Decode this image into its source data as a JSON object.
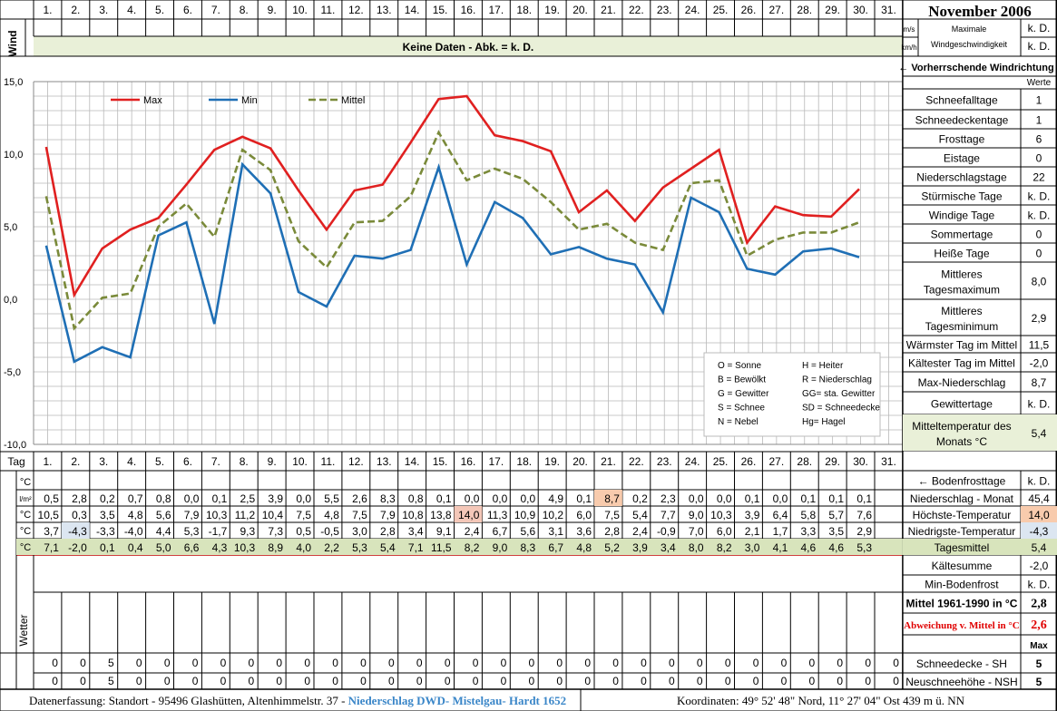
{
  "month_title": "November 2006",
  "days": [
    "1.",
    "2.",
    "3.",
    "4.",
    "5.",
    "6.",
    "7.",
    "8.",
    "9.",
    "10.",
    "11.",
    "12.",
    "13.",
    "14.",
    "15.",
    "16.",
    "17.",
    "18.",
    "19.",
    "20.",
    "21.",
    "22.",
    "23.",
    "24.",
    "25.",
    "26.",
    "27.",
    "28.",
    "29.",
    "30.",
    "31."
  ],
  "wind": {
    "label": "Wind",
    "no_data_banner": "Keine Daten - Abk. = k. D.",
    "unit_ms": "m/s",
    "unit_kmh": "km/h",
    "max_label_1": "Maximale",
    "max_label_2": "Windgeschwindigkeit",
    "value_ms": "k. D.",
    "value_kmh": "k. D.",
    "direction_label": "← Vorherrschende Windrichtung"
  },
  "chart_data": {
    "type": "line",
    "x": [
      1,
      2,
      3,
      4,
      5,
      6,
      7,
      8,
      9,
      10,
      11,
      12,
      13,
      14,
      15,
      16,
      17,
      18,
      19,
      20,
      21,
      22,
      23,
      24,
      25,
      26,
      27,
      28,
      29,
      30
    ],
    "ylim": [
      -10,
      15
    ],
    "y_ticks": [
      "15,0",
      "10,0",
      "5,0",
      "0,0",
      "-5,0",
      "-10,0"
    ],
    "grid": true,
    "legend_position": "top-left",
    "series": [
      {
        "name": "Max",
        "color": "#e02020",
        "dash": false,
        "values": [
          10.5,
          0.3,
          3.5,
          4.8,
          5.6,
          7.9,
          10.3,
          11.2,
          10.4,
          7.5,
          4.8,
          7.5,
          7.9,
          10.8,
          13.8,
          14.0,
          11.3,
          10.9,
          10.2,
          6.0,
          7.5,
          5.4,
          7.7,
          9.0,
          10.3,
          3.9,
          6.4,
          5.8,
          5.7,
          7.6
        ]
      },
      {
        "name": "Min",
        "color": "#1f6fb5",
        "dash": false,
        "values": [
          3.7,
          -4.3,
          -3.3,
          -4.0,
          4.4,
          5.3,
          -1.7,
          9.3,
          7.3,
          0.5,
          -0.5,
          3.0,
          2.8,
          3.4,
          9.1,
          2.4,
          6.7,
          5.6,
          3.1,
          3.6,
          2.8,
          2.4,
          -0.9,
          7.0,
          6.0,
          2.1,
          1.7,
          3.3,
          3.5,
          2.9
        ]
      },
      {
        "name": "Mittel",
        "color": "#7a8a3a",
        "dash": true,
        "values": [
          7.1,
          -2.0,
          0.1,
          0.4,
          5.0,
          6.6,
          4.3,
          10.3,
          8.9,
          4.0,
          2.2,
          5.3,
          5.4,
          7.1,
          11.5,
          8.2,
          9.0,
          8.3,
          6.7,
          4.8,
          5.2,
          3.9,
          3.4,
          8.0,
          8.2,
          3.0,
          4.1,
          4.6,
          4.6,
          5.3
        ]
      }
    ]
  },
  "weather_legend": [
    [
      "O = Sonne",
      "H = Heiter"
    ],
    [
      "B = Bewölkt",
      "R = Niederschlag"
    ],
    [
      "G = Gewitter",
      "GG= sta. Gewitter"
    ],
    [
      "S = Schnee",
      "SD = Schneedecke"
    ],
    [
      "N = Nebel",
      "Hg= Hagel"
    ]
  ],
  "table": {
    "tag_label": "Tag",
    "rows": [
      {
        "unit": "°C",
        "values": [
          "",
          "",
          "",
          "",
          "",
          "",
          "",
          "",
          "",
          "",
          "",
          "",
          "",
          "",
          "",
          "",
          "",
          "",
          "",
          "",
          "",
          "",
          "",
          "",
          "",
          "",
          "",
          "",
          "",
          "",
          ""
        ]
      },
      {
        "unit": "l/m²",
        "values": [
          "0,5",
          "2,8",
          "0,2",
          "0,7",
          "0,8",
          "0,0",
          "0,1",
          "2,5",
          "3,9",
          "0,0",
          "5,5",
          "2,6",
          "8,3",
          "0,8",
          "0,1",
          "0,0",
          "0,0",
          "0,0",
          "4,9",
          "0,1",
          "8,7",
          "0,2",
          "2,3",
          "0,0",
          "0,0",
          "0,1",
          "0,0",
          "0,1",
          "0,1",
          "0,1",
          ""
        ]
      },
      {
        "unit": "°C",
        "values": [
          "10,5",
          "0,3",
          "3,5",
          "4,8",
          "5,6",
          "7,9",
          "10,3",
          "11,2",
          "10,4",
          "7,5",
          "4,8",
          "7,5",
          "7,9",
          "10,8",
          "13,8",
          "14,0",
          "11,3",
          "10,9",
          "10,2",
          "6,0",
          "7,5",
          "5,4",
          "7,7",
          "9,0",
          "10,3",
          "3,9",
          "6,4",
          "5,8",
          "5,7",
          "7,6",
          ""
        ]
      },
      {
        "unit": "°C",
        "values": [
          "3,7",
          "-4,3",
          "-3,3",
          "-4,0",
          "4,4",
          "5,3",
          "-1,7",
          "9,3",
          "7,3",
          "0,5",
          "-0,5",
          "3,0",
          "2,8",
          "3,4",
          "9,1",
          "2,4",
          "6,7",
          "5,6",
          "3,1",
          "3,6",
          "2,8",
          "2,4",
          "-0,9",
          "7,0",
          "6,0",
          "2,1",
          "1,7",
          "3,3",
          "3,5",
          "2,9",
          ""
        ]
      },
      {
        "unit": "°C",
        "values": [
          "7,1",
          "-2,0",
          "0,1",
          "0,4",
          "5,0",
          "6,6",
          "4,3",
          "10,3",
          "8,9",
          "4,0",
          "2,2",
          "5,3",
          "5,4",
          "7,1",
          "11,5",
          "8,2",
          "9,0",
          "8,3",
          "6,7",
          "4,8",
          "5,2",
          "3,9",
          "3,4",
          "8,0",
          "8,2",
          "3,0",
          "4,1",
          "4,6",
          "4,6",
          "5,3",
          ""
        ]
      }
    ],
    "wetter_label": "Wetter",
    "snow_sh": [
      "0",
      "0",
      "5",
      "0",
      "0",
      "0",
      "0",
      "0",
      "0",
      "0",
      "0",
      "0",
      "0",
      "0",
      "0",
      "0",
      "0",
      "0",
      "0",
      "0",
      "0",
      "0",
      "0",
      "0",
      "0",
      "0",
      "0",
      "0",
      "0",
      "0",
      "0"
    ],
    "snow_nsh": [
      "0",
      "0",
      "5",
      "0",
      "0",
      "0",
      "0",
      "0",
      "0",
      "0",
      "0",
      "0",
      "0",
      "0",
      "0",
      "0",
      "0",
      "0",
      "0",
      "0",
      "0",
      "0",
      "0",
      "0",
      "0",
      "0",
      "0",
      "0",
      "0",
      "0",
      "0"
    ]
  },
  "summary_top": {
    "header": "Werte",
    "items": [
      {
        "label": "Schneefalltage",
        "value": "1"
      },
      {
        "label": "Schneedeckentage",
        "value": "1"
      },
      {
        "label": "Frosttage",
        "value": "6"
      },
      {
        "label": "Eistage",
        "value": "0"
      },
      {
        "label": "Niederschlagstage",
        "value": "22"
      },
      {
        "label": "Stürmische Tage",
        "value": "k. D."
      },
      {
        "label": "Windige Tage",
        "value": "k. D."
      },
      {
        "label": "Sommertage",
        "value": "0"
      },
      {
        "label": "Heiße Tage",
        "value": "0"
      },
      {
        "label": "Mittleres Tagesmaximum",
        "line1": "Mittleres",
        "line2": "Tagesmaximum",
        "value": "8,0"
      },
      {
        "label": "Mittleres Tagesminimum",
        "line1": "Mittleres",
        "line2": "Tagesminimum",
        "value": "2,9"
      },
      {
        "label": "Wärmster Tag im Mittel",
        "value": "11,5"
      },
      {
        "label": "Kältester Tag im Mittel",
        "value": "-2,0"
      },
      {
        "label": "Max-Niederschlag",
        "value": "8,7"
      },
      {
        "label": "Gewittertage",
        "value": "k. D."
      },
      {
        "label": "Mitteltemperatur des Monats °C",
        "line1": "Mitteltemperatur des",
        "line2": "Monats °C",
        "value": "5,4"
      }
    ]
  },
  "summary_bottom": {
    "items": [
      {
        "label": "← Bodenfrosttage",
        "value": "k. D."
      },
      {
        "label": "Niederschlag - Monat",
        "value": "45,4"
      },
      {
        "label": "Höchste-Temperatur",
        "value": "14,0"
      },
      {
        "label": "Niedrigste-Temperatur",
        "value": "-4,3"
      },
      {
        "label": "Tagesmittel",
        "value": "5,4"
      },
      {
        "label": "Kältesumme",
        "value": "-2,0"
      },
      {
        "label": "Min-Bodenfrost",
        "value": "k. D."
      },
      {
        "label": "Mittel 1961-1990 in °C",
        "value": "2,8"
      },
      {
        "label": "Abweichung v. Mittel in °C",
        "value": "2,6"
      },
      {
        "label": "",
        "value": "Max"
      },
      {
        "label": "Schneedecke -  SH",
        "value": "5"
      },
      {
        "label": "Neuschneehöhe - NSH",
        "value": "5"
      }
    ]
  },
  "footer": {
    "part1": "Datenerfassung:  Standort -  95496  Glashütten, Altenhimmelstr. 37 - ",
    "part2": "Niederschlag DWD- Mistelgau- Hardt 1652",
    "coords": "Koordinaten:  49° 52' 48\" Nord,   11° 27' 04\" Ost   439 m ü. NN"
  },
  "colors": {
    "grid": "#b8b8b8",
    "banner": "#e9f0d8",
    "mean_row": "#d8e4bc",
    "max_highlight": "#f8cbad",
    "min_highlight": "#dce6f1",
    "highlight_red": "#f4c7b8",
    "title_blue": "#3a86c8",
    "deviation_red": "#e00000"
  }
}
